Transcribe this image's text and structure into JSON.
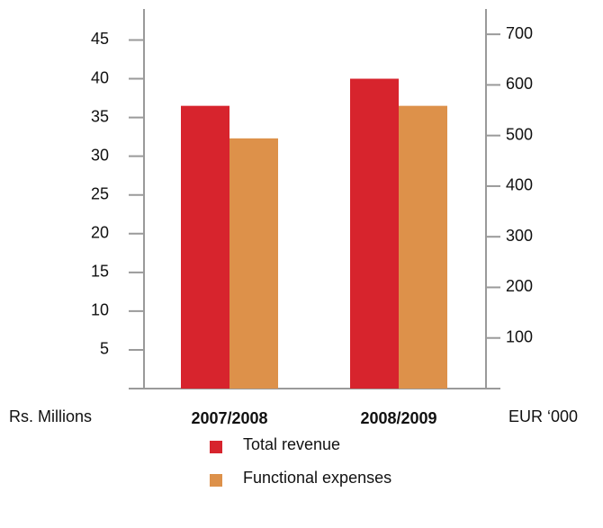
{
  "chart_data": {
    "type": "bar",
    "categories": [
      "2007/2008",
      "2008/2009"
    ],
    "series": [
      {
        "name": "Total revenue",
        "color": "#d7242d",
        "values": [
          36.5,
          40
        ]
      },
      {
        "name": "Functional expenses",
        "color": "#dd914a",
        "values": [
          32.3,
          36.5
        ]
      }
    ],
    "ylabel": "Rs. Millions",
    "y2label": "EUR ‘000",
    "ylim": [
      0,
      49
    ],
    "yticks": [
      5,
      10,
      15,
      20,
      25,
      30,
      35,
      40,
      45
    ],
    "y2lim": [
      0,
      750
    ],
    "y2ticks": [
      100,
      200,
      300,
      400,
      500,
      600,
      700
    ],
    "legend": "bottom"
  }
}
